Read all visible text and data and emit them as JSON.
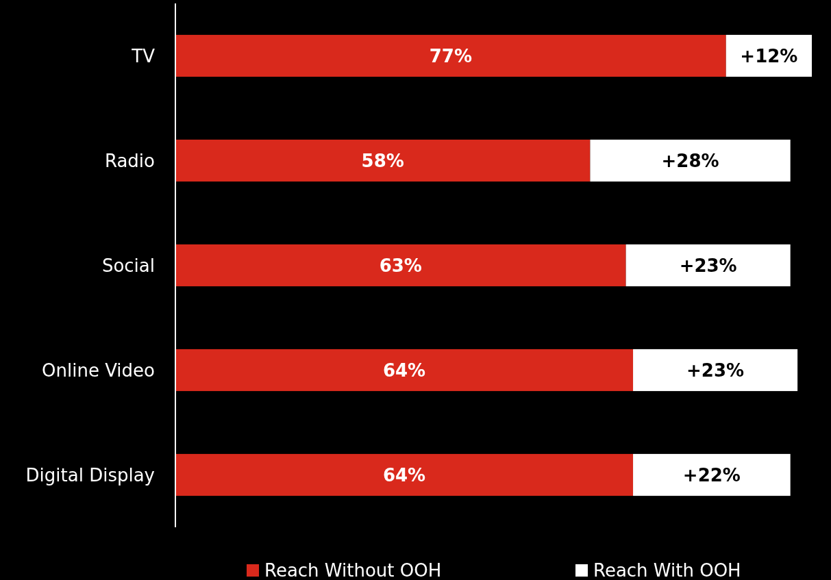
{
  "chart_data": {
    "type": "bar",
    "orientation": "horizontal",
    "stacked": true,
    "categories": [
      "TV",
      "Radio",
      "Social",
      "Online Video",
      "Digital Display"
    ],
    "series": [
      {
        "name": "Reach Without OOH",
        "color": "#d9291c",
        "values": [
          77,
          58,
          63,
          64,
          64
        ],
        "value_labels": [
          "77%",
          "58%",
          "63%",
          "64%",
          "64%"
        ]
      },
      {
        "name": "Reach With OOH",
        "color": "#ffffff",
        "values": [
          12,
          28,
          23,
          23,
          22
        ],
        "value_labels": [
          "+12%",
          "+28%",
          "+23%",
          "+23%",
          "+22%"
        ]
      }
    ],
    "legend": "bottom",
    "grid": false
  }
}
